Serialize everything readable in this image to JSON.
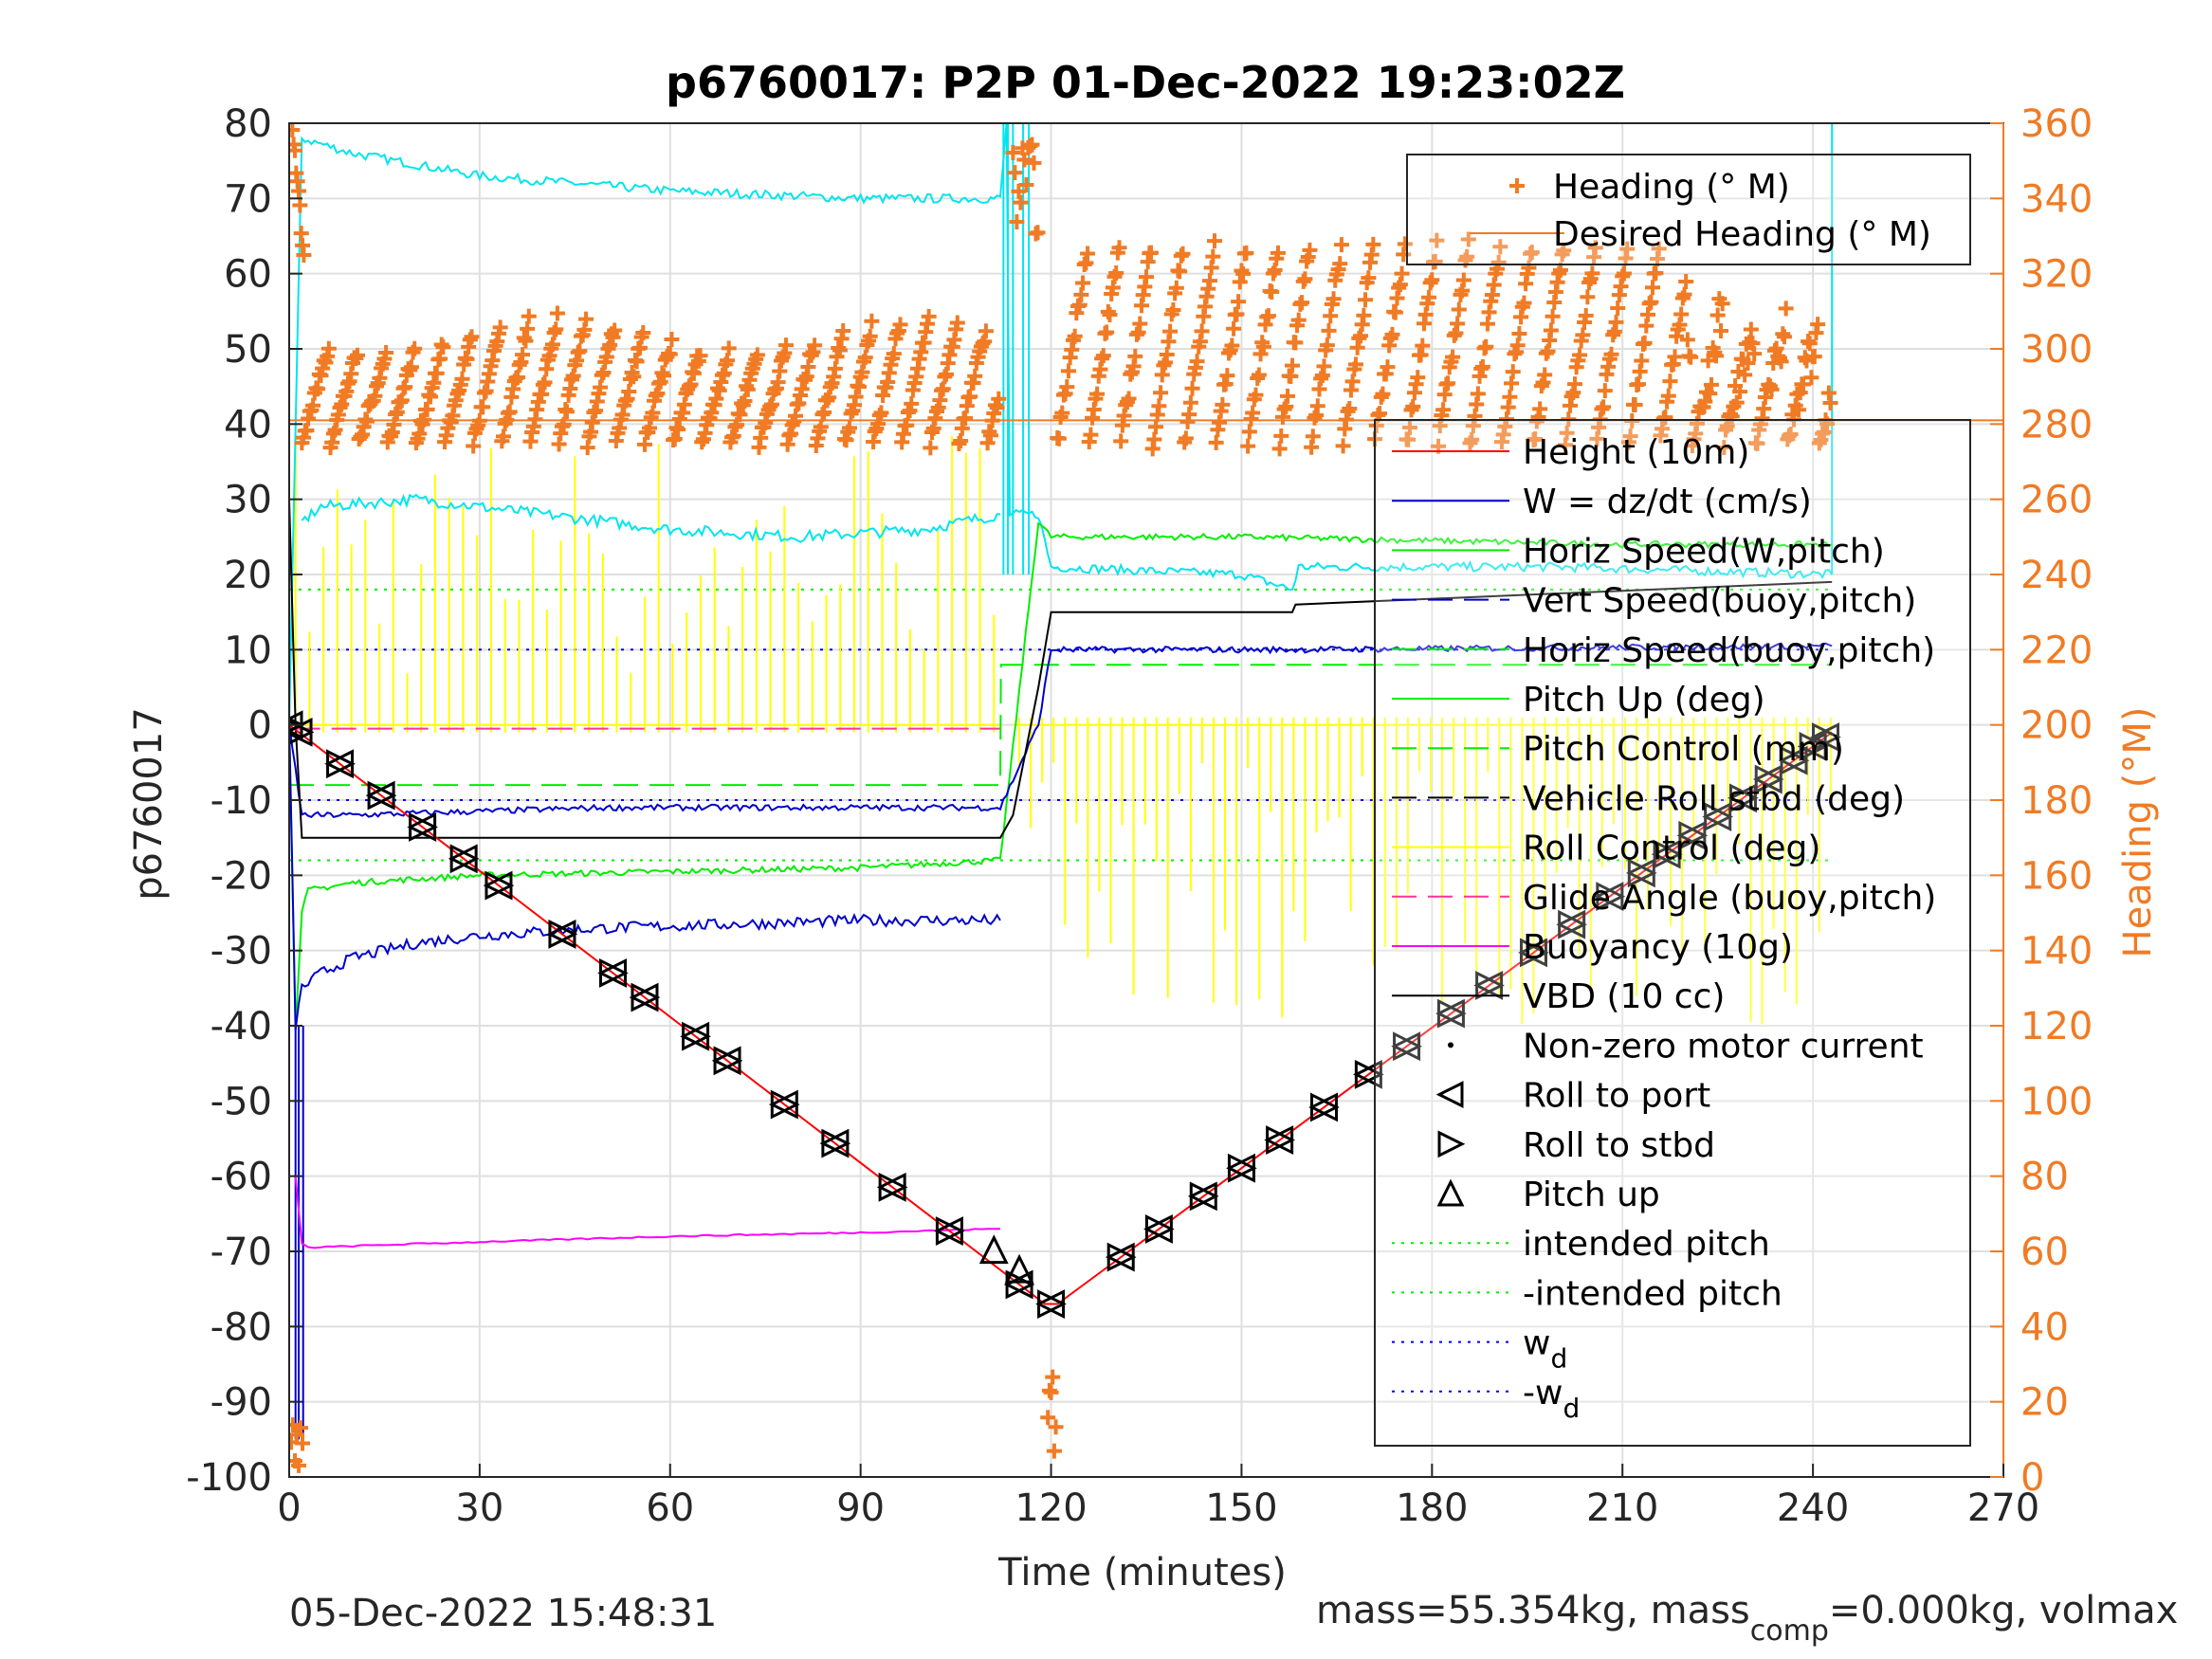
{
  "chart_data": {
    "type": "line",
    "title": "p6760017: P2P 01-Dec-2022 19:23:02Z",
    "xlabel": "Time (minutes)",
    "ylabel": "p6760017",
    "ylabel_right": "Heading (°M)",
    "xlim": [
      0,
      270
    ],
    "ylim": [
      -100,
      80
    ],
    "ylim_right": [
      0,
      360
    ],
    "x_ticks": [
      "0",
      "30",
      "60",
      "90",
      "120",
      "150",
      "180",
      "210",
      "240",
      "270"
    ],
    "y_ticks": [
      "80",
      "70",
      "60",
      "50",
      "40",
      "30",
      "20",
      "10",
      "0",
      "-10",
      "-20",
      "-30",
      "-40",
      "-50",
      "-60",
      "-70",
      "-80",
      "-90",
      "-100"
    ],
    "y_ticks_right": [
      "360",
      "340",
      "320",
      "300",
      "280",
      "260",
      "240",
      "220",
      "200",
      "180",
      "160",
      "140",
      "120",
      "100",
      "80",
      "60",
      "40",
      "20",
      "0"
    ],
    "grid": true,
    "footer_left": "05-Dec-2022 15:48:31",
    "footer_right": {
      "pre": "mass=55.354kg, mass",
      "sub": "comp",
      "post": "=0.000kg, volmax"
    },
    "colors": {
      "heading": "#f07b24",
      "height": "#ff0000",
      "w": "#0000cc",
      "horiz": "#00ee00",
      "roll_control": "#ffff00",
      "glide": "#ff3399",
      "buoyancy": "#ff00ff",
      "vbd": "#000000",
      "cyan": "#00e5ee",
      "intended": "#00ee00",
      "wd": "#0000ee"
    },
    "legend_heading": [
      {
        "label": "Heading (° M)",
        "marker": "plus",
        "color": "#f07b24"
      },
      {
        "label": "Desired Heading (° M)",
        "marker": "line",
        "color": "#f07b24"
      }
    ],
    "legend_main": [
      {
        "label": "Height (10m)",
        "style": "solid",
        "color": "#ff0000"
      },
      {
        "label": "W = dz/dt (cm/s)",
        "style": "solid",
        "color": "#0000cc"
      },
      {
        "label": "Horiz Speed(W,pitch)",
        "style": "solid",
        "color": "#00ee00"
      },
      {
        "label": "Vert Speed(buoy,pitch)",
        "style": "dashed",
        "color": "#0000cc"
      },
      {
        "label": "Horiz Speed(buoy,pitch)",
        "style": "dashed",
        "color": "#00ee00"
      },
      {
        "label": "Pitch Up (deg)",
        "style": "solid",
        "color": "#00ee00"
      },
      {
        "label": "Pitch Control (mm)",
        "style": "dashed",
        "color": "#00ee00"
      },
      {
        "label": "Vehicle Roll stbd (deg)",
        "style": "dashed",
        "color": "#000000"
      },
      {
        "label": "Roll Control (deg)",
        "style": "solid",
        "color": "#ffff00"
      },
      {
        "label": "Glide Angle (buoy,pitch)",
        "style": "dashed",
        "color": "#ff3399"
      },
      {
        "label": "Buoyancy (10g)",
        "style": "solid",
        "color": "#ff00ff"
      },
      {
        "label": "VBD (10 cc)",
        "style": "solid",
        "color": "#000000"
      },
      {
        "label": "Non-zero motor current",
        "style": "dot",
        "color": "#000000"
      },
      {
        "label": "Roll to port",
        "style": "tri-left",
        "color": "#000000"
      },
      {
        "label": "Roll to stbd",
        "style": "tri-right",
        "color": "#000000"
      },
      {
        "label": "Pitch up",
        "style": "tri-up",
        "color": "#000000"
      },
      {
        "label": "intended pitch",
        "style": "dotted",
        "color": "#00ee00"
      },
      {
        "label": "-intended pitch",
        "style": "dotted",
        "color": "#00ee00"
      },
      {
        "label": "w",
        "sub": "d",
        "style": "dotted",
        "color": "#0000ee"
      },
      {
        "label": "-w",
        "sub": "d",
        "style": "dotted",
        "color": "#0000ee"
      }
    ],
    "series": [
      {
        "name": "Height (10m)",
        "x": [
          0,
          119,
          121,
          243
        ],
        "y": [
          0,
          -77,
          -77,
          -1
        ]
      },
      {
        "name": "Desired Heading (° M)",
        "axis": "right",
        "x": [
          0,
          270
        ],
        "y": [
          281,
          281
        ]
      },
      {
        "name": "VBD (10 cc)",
        "x": [
          0,
          1,
          2,
          112,
          114,
          118,
          120,
          158,
          158.5,
          243
        ],
        "y": [
          30,
          0,
          -15,
          -15,
          -12,
          5,
          15,
          15,
          16,
          19
        ]
      },
      {
        "name": "Buoyancy (10g)",
        "x": [
          1,
          2,
          3,
          20,
          60,
          90,
          112
        ],
        "y": [
          -60,
          -69,
          -69.5,
          -69,
          -68,
          -67.5,
          -67
        ]
      },
      {
        "name": "Pitch Up (deg)",
        "x": [
          0,
          1,
          2,
          3,
          10,
          30,
          60,
          90,
          112,
          118,
          120,
          150,
          180,
          210,
          243
        ],
        "y": [
          0,
          -40,
          -25,
          -22,
          -21,
          -20,
          -19.5,
          -19,
          -18,
          27,
          25,
          25,
          24.5,
          24,
          24
        ]
      },
      {
        "name": "W = dz/dt (cm/s)",
        "x": [
          0,
          1,
          2,
          5,
          10,
          20,
          30,
          50,
          70,
          90,
          112
        ],
        "y": [
          0,
          -40,
          -35,
          -33,
          -31,
          -29,
          -28,
          -27,
          -26.5,
          -26,
          -26
        ]
      },
      {
        "name": "Vert Speed(buoy,pitch)",
        "x": [
          0,
          2,
          10,
          50,
          112,
          118,
          120,
          158,
          243
        ],
        "y": [
          0,
          -12,
          -12,
          -11,
          -11,
          0,
          10,
          10,
          10.5
        ]
      },
      {
        "name": "Horiz Speed(W,pitch)",
        "x": [
          0,
          2,
          10,
          30,
          60,
          90,
          112,
          113,
          113.5,
          118,
          120,
          150,
          158,
          159,
          200,
          243
        ],
        "y": [
          0,
          78,
          76,
          73,
          71,
          70,
          70,
          80,
          28,
          28,
          21,
          20,
          18,
          21,
          21,
          20
        ]
      },
      {
        "name": "Horiz Speed(buoy,pitch) cyan",
        "x": [
          2,
          5,
          20,
          40,
          60,
          80,
          100,
          112
        ],
        "y": [
          27,
          29,
          30,
          28,
          26,
          25,
          26,
          28
        ]
      },
      {
        "name": "Pitch Control (mm)",
        "x": [
          0,
          112,
          112.1,
          243
        ],
        "y": [
          -8,
          -8,
          8,
          8
        ]
      },
      {
        "name": "intended pitch",
        "x": [
          0,
          243
        ],
        "y": [
          18,
          18
        ]
      },
      {
        "name": "-intended pitch",
        "x": [
          0,
          243
        ],
        "y": [
          -18,
          -18
        ]
      },
      {
        "name": "w_d",
        "x": [
          0,
          243
        ],
        "y": [
          10,
          10
        ]
      },
      {
        "name": "-w_d",
        "x": [
          0,
          243
        ],
        "y": [
          -10,
          -10
        ]
      }
    ],
    "heading_scatter": {
      "name": "Heading (° M)",
      "axis": "right",
      "dive_cycle_period": 4.5,
      "dive_range": [
        275,
        305
      ],
      "climb_cycle_period": 5,
      "climb_range": [
        275,
        340
      ]
    },
    "markers": {
      "roll_to_stbd_x": [
        0,
        1.5,
        8,
        14.5,
        21,
        27.5,
        33,
        43,
        51,
        56,
        64,
        69,
        78,
        86,
        95,
        104,
        115,
        120,
        131,
        137,
        144,
        150,
        156,
        163,
        170,
        176,
        183,
        189,
        196,
        202,
        208,
        213,
        217,
        221,
        225,
        229,
        233,
        237,
        240,
        242
      ],
      "pitch_up_x": [
        111,
        115
      ]
    }
  }
}
